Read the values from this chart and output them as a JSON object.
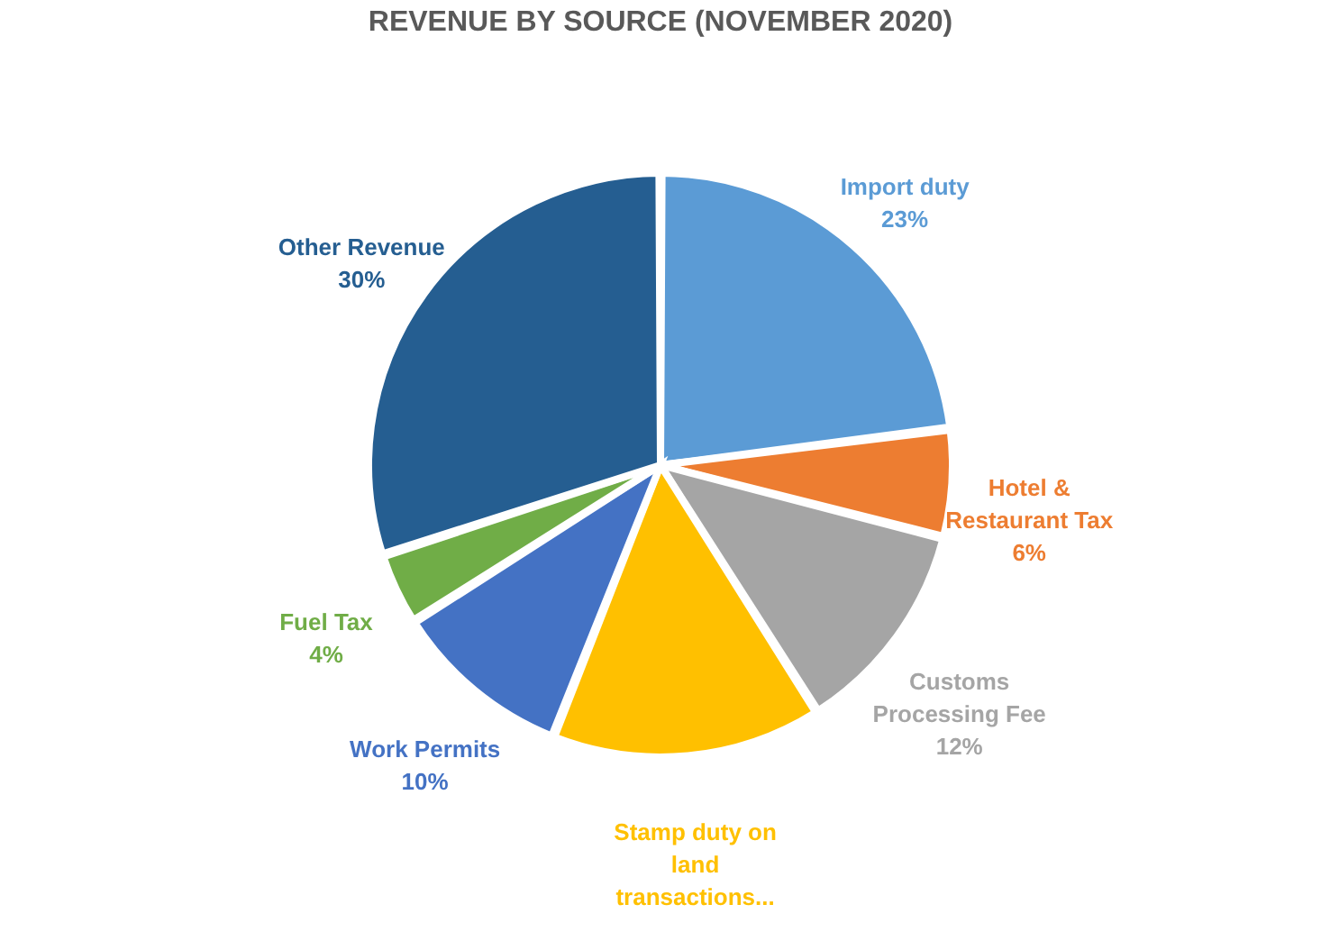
{
  "chart_data": {
    "type": "pie",
    "title": "REVENUE BY SOURCE (NOVEMBER 2020)",
    "categories": [
      "Import duty",
      "Hotel & Restaurant Tax",
      "Customs Processing Fee",
      "Stamp duty on land transactions...",
      "Work Permits",
      "Fuel Tax",
      "Other Revenue"
    ],
    "values": [
      23,
      6,
      12,
      15,
      10,
      4,
      30
    ],
    "value_labels": [
      "23%",
      "6%",
      "12%",
      null,
      "10%",
      "4%",
      "30%"
    ],
    "colors": [
      "#5b9bd5",
      "#ed7d31",
      "#a5a5a5",
      "#ffc000",
      "#4472c4",
      "#70ad47",
      "#255e91"
    ],
    "legend": false
  }
}
